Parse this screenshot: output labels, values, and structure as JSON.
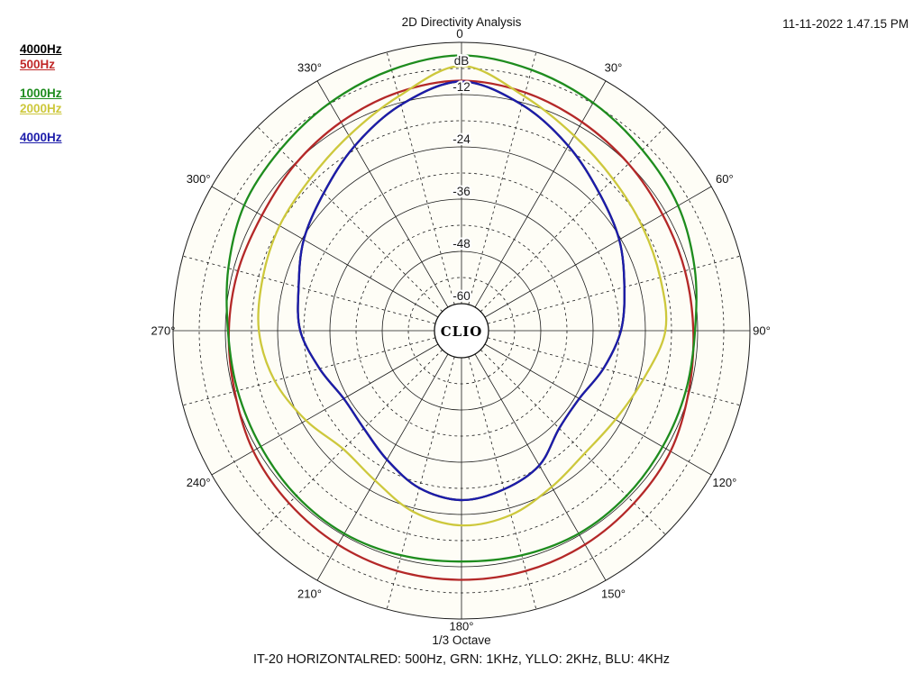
{
  "header": {
    "title": "2D Directivity Analysis",
    "timestamp": "11-11-2022 1.47.15 PM"
  },
  "legend": [
    {
      "label": "4000Hz",
      "color": "#000000"
    },
    {
      "label": "500Hz",
      "color": "#c02828"
    },
    {
      "label": "1000Hz",
      "color": "#1e8c1e"
    },
    {
      "label": "2000Hz",
      "color": "#cdc83c"
    },
    {
      "label": "4000Hz",
      "color": "#1c1caa"
    }
  ],
  "center_logo": "CLIO",
  "footer": {
    "bottom_axis_label": "1/3 Octave",
    "caption": "IT-20 HORIZONTALRED: 500Hz, GRN: 1KHz, YLLO: 2KHz, BLU: 4KHz"
  },
  "chart_data": {
    "type": "polar-line",
    "title": "2D Directivity Analysis",
    "units": "dB",
    "legend_position": "top-left",
    "grid": true,
    "radial_axis": {
      "outer_label": "0",
      "unit_label": "dB",
      "tick_labels": [
        "-12",
        "-24",
        "-36",
        "-48",
        "-60"
      ],
      "tick_values_db": [
        -12,
        -24,
        -36,
        -48,
        -60
      ],
      "range_db": [
        0,
        -60
      ],
      "solid_ring_step_db": 12,
      "dashed_ring_step_db": 6
    },
    "angle_axis": {
      "solid_spoke_step_deg": 30,
      "dashed_spoke_step_deg": 15,
      "labels": [
        {
          "text": "30°",
          "deg": 30
        },
        {
          "text": "60°",
          "deg": 60
        },
        {
          "text": "90°",
          "deg": 90
        },
        {
          "text": "120°",
          "deg": 120
        },
        {
          "text": "150°",
          "deg": 150
        },
        {
          "text": "180°",
          "deg": 180
        },
        {
          "text": "210°",
          "deg": 210
        },
        {
          "text": "240°",
          "deg": 240
        },
        {
          "text": "270°",
          "deg": 270
        },
        {
          "text": "300°",
          "deg": 300
        },
        {
          "text": "330°",
          "deg": 330
        }
      ]
    },
    "angles_deg": [
      0,
      15,
      30,
      45,
      60,
      75,
      90,
      105,
      120,
      135,
      150,
      165,
      180,
      195,
      210,
      225,
      240,
      255,
      270,
      285,
      300,
      315,
      330,
      345
    ],
    "series": [
      {
        "name": "4000Hz",
        "color": "#000000",
        "values_db": [
          -9.0,
          -12.5,
          -17.2,
          -21.5,
          -24.4,
          -27.5,
          -29.6,
          -32.5,
          -35.0,
          -34.5,
          -30.5,
          -28.5,
          -27.3,
          -28.8,
          -32.0,
          -34.5,
          -35.0,
          -32.5,
          -29.2,
          -27.5,
          -24.4,
          -21.5,
          -17.2,
          -12.5
        ]
      },
      {
        "name": "500Hz",
        "color": "#b42828",
        "values_db": [
          -8.8,
          -9.6,
          -10.9,
          -12.0,
          -12.9,
          -13.1,
          -13.0,
          -12.2,
          -10.8,
          -10.2,
          -9.5,
          -9.1,
          -9.0,
          -9.1,
          -9.5,
          -10.2,
          -11.0,
          -12.3,
          -12.8,
          -13.1,
          -13.3,
          -12.2,
          -10.9,
          -9.6
        ]
      },
      {
        "name": "1000Hz",
        "color": "#1e8c1e",
        "values_db": [
          -3.0,
          -4.2,
          -5.8,
          -7.5,
          -8.8,
          -10.8,
          -12.6,
          -12.9,
          -12.9,
          -12.6,
          -12.4,
          -12.8,
          -13.2,
          -12.8,
          -12.4,
          -12.6,
          -13.0,
          -13.0,
          -12.6,
          -10.8,
          -8.6,
          -7.4,
          -5.8,
          -4.2
        ]
      },
      {
        "name": "2000Hz",
        "color": "#cdc83c",
        "values_db": [
          -5.4,
          -10.5,
          -14.5,
          -17.0,
          -18.3,
          -19.0,
          -19.4,
          -23.0,
          -25.4,
          -26.3,
          -24.8,
          -22.4,
          -21.5,
          -23.2,
          -26.5,
          -27.8,
          -25.0,
          -21.8,
          -19.7,
          -19.0,
          -18.0,
          -17.0,
          -14.5,
          -10.5
        ]
      },
      {
        "name": "4000Hz",
        "color": "#1c1caa",
        "values_db": [
          -9.0,
          -12.5,
          -17.2,
          -21.5,
          -24.4,
          -27.5,
          -29.6,
          -32.5,
          -35.0,
          -34.5,
          -30.5,
          -28.5,
          -27.3,
          -28.8,
          -32.0,
          -34.5,
          -35.0,
          -32.5,
          -29.2,
          -27.5,
          -24.4,
          -21.5,
          -17.2,
          -12.5
        ]
      }
    ]
  }
}
